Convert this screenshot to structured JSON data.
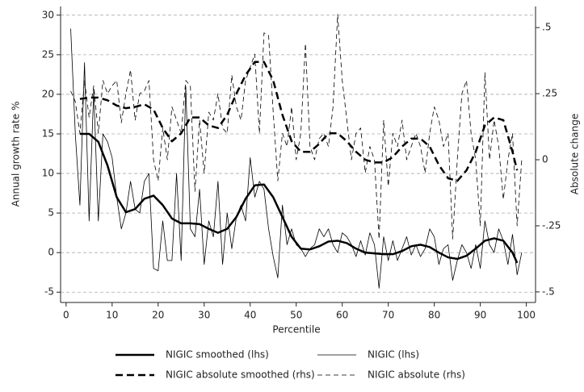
{
  "chart_data": {
    "type": "line",
    "xlabel": "Percentile",
    "ylabel": "Annual growth rate %",
    "y2label": "Absolute change",
    "xlim": [
      -1.2,
      102
    ],
    "xticks": [
      0,
      10,
      20,
      30,
      40,
      50,
      60,
      70,
      80,
      90,
      100
    ],
    "ylim": [
      -6.3,
      31.1
    ],
    "yticks": [
      -5,
      0,
      5,
      10,
      15,
      20,
      25,
      30
    ],
    "y2lim": [
      -0.54,
      0.58
    ],
    "y2ticks": [
      {
        "value": -0.5,
        "label": "-.5"
      },
      {
        "value": -0.25,
        "label": "-.25"
      },
      {
        "value": 0,
        "label": "0"
      },
      {
        "value": 0.25,
        "label": ".25"
      },
      {
        "value": 0.5,
        "label": ".5"
      }
    ],
    "grid": true,
    "series": [
      {
        "name": "NIGIC smoothed (lhs)",
        "color": "#000000",
        "linestyle": "solid",
        "linewidth": 2.5,
        "axis": "y",
        "x": [
          3,
          5,
          7,
          9,
          11,
          13,
          15,
          17,
          19,
          21,
          23,
          25,
          27,
          29,
          31,
          33,
          35,
          37,
          39,
          41,
          43,
          45,
          47,
          49,
          51,
          53,
          55,
          57,
          59,
          61,
          63,
          65,
          67,
          69,
          71,
          73,
          75,
          77,
          79,
          81,
          83,
          85,
          87,
          89,
          91,
          93,
          95,
          97,
          98
        ],
        "values": [
          15,
          15,
          14,
          11,
          7,
          5.1,
          5.5,
          6.8,
          7.2,
          6,
          4.3,
          3.7,
          3.7,
          3.6,
          3,
          2.5,
          3,
          4.5,
          6.8,
          8.5,
          8.6,
          7,
          4.5,
          2,
          0.5,
          0.4,
          0.8,
          1.4,
          1.5,
          1.2,
          0.5,
          0,
          -0.1,
          -0.2,
          -0.2,
          0.2,
          0.8,
          1,
          0.7,
          0,
          -0.6,
          -0.8,
          -0.4,
          0.5,
          1.5,
          1.8,
          1.5,
          0,
          -1.3
        ]
      },
      {
        "name": "NIGIC (lhs)",
        "color": "#000000",
        "linestyle": "solid",
        "linewidth": 0.8,
        "axis": "y",
        "x": [
          1,
          2,
          3,
          4,
          5,
          6,
          7,
          8,
          9,
          10,
          11,
          12,
          13,
          14,
          15,
          16,
          17,
          18,
          19,
          20,
          21,
          22,
          23,
          24,
          25,
          26,
          27,
          28,
          29,
          30,
          31,
          32,
          33,
          34,
          35,
          36,
          37,
          38,
          39,
          40,
          41,
          42,
          43,
          44,
          45,
          46,
          47,
          48,
          49,
          50,
          51,
          52,
          53,
          54,
          55,
          56,
          57,
          58,
          59,
          60,
          61,
          62,
          63,
          64,
          65,
          66,
          67,
          68,
          69,
          70,
          71,
          72,
          73,
          74,
          75,
          76,
          77,
          78,
          79,
          80,
          81,
          82,
          83,
          84,
          85,
          86,
          87,
          88,
          89,
          90,
          91,
          92,
          93,
          94,
          95,
          96,
          97,
          98,
          99
        ],
        "values": [
          28.3,
          15,
          6,
          24,
          4,
          20.5,
          4,
          15,
          14,
          12,
          7,
          3,
          5,
          9,
          5.5,
          5,
          9,
          10,
          -2,
          -2.3,
          4,
          -1,
          -1,
          10,
          -1,
          21,
          3,
          2,
          8,
          -1.5,
          4,
          2,
          9,
          -1.5,
          5,
          0.5,
          4.5,
          6,
          4,
          12,
          7,
          9,
          8,
          3,
          -0.5,
          -3.2,
          6,
          1,
          3,
          1,
          0.5,
          -0.5,
          0.5,
          1,
          3,
          2,
          3,
          1,
          0,
          2.5,
          2,
          1,
          -0.5,
          1.5,
          -0.3,
          2.5,
          1,
          -4.5,
          2,
          -1,
          1.5,
          -1,
          0.5,
          2,
          -0.3,
          1,
          -0.5,
          0.5,
          3,
          2,
          -1.5,
          0.5,
          1,
          -3.5,
          -1,
          1,
          0,
          -2,
          1,
          -2,
          4,
          1,
          0,
          3,
          1.5,
          -1.5,
          2.3,
          -2.8,
          0
        ]
      },
      {
        "name": "NIGIC absolute smoothed (rhs)",
        "color": "#000000",
        "linestyle": "dashed",
        "linewidth": 2.5,
        "axis": "y2",
        "x": [
          3,
          5,
          7,
          9,
          11,
          13,
          15,
          17,
          19,
          21,
          23,
          25,
          27,
          29,
          31,
          33,
          35,
          37,
          39,
          41,
          43,
          45,
          47,
          49,
          51,
          53,
          55,
          57,
          59,
          61,
          63,
          65,
          67,
          69,
          71,
          73,
          75,
          77,
          79,
          81,
          83,
          85,
          87,
          89,
          91,
          93,
          95,
          97,
          98
        ],
        "values": [
          0.23,
          0.235,
          0.235,
          0.225,
          0.205,
          0.195,
          0.2,
          0.21,
          0.19,
          0.12,
          0.07,
          0.1,
          0.16,
          0.16,
          0.13,
          0.12,
          0.17,
          0.25,
          0.32,
          0.37,
          0.37,
          0.3,
          0.17,
          0.07,
          0.03,
          0.03,
          0.06,
          0.1,
          0.1,
          0.07,
          0.03,
          0,
          -0.01,
          -0.01,
          0.01,
          0.05,
          0.08,
          0.08,
          0.05,
          -0.02,
          -0.07,
          -0.08,
          -0.04,
          0.03,
          0.13,
          0.16,
          0.15,
          0.03,
          -0.04
        ]
      },
      {
        "name": "NIGIC absolute (rhs)",
        "color": "#000000",
        "linestyle": "dashed",
        "linewidth": 0.8,
        "axis": "y2",
        "x": [
          1,
          2,
          3,
          4,
          5,
          6,
          7,
          8,
          9,
          10,
          11,
          12,
          13,
          14,
          15,
          16,
          17,
          18,
          19,
          20,
          21,
          22,
          23,
          24,
          25,
          26,
          27,
          28,
          29,
          30,
          31,
          32,
          33,
          34,
          35,
          36,
          37,
          38,
          39,
          40,
          41,
          42,
          43,
          44,
          45,
          46,
          47,
          48,
          49,
          50,
          51,
          52,
          53,
          54,
          55,
          56,
          57,
          58,
          59,
          60,
          61,
          62,
          63,
          64,
          65,
          66,
          67,
          68,
          69,
          70,
          71,
          72,
          73,
          74,
          75,
          76,
          77,
          78,
          79,
          80,
          81,
          82,
          83,
          84,
          85,
          86,
          87,
          88,
          89,
          90,
          91,
          92,
          93,
          94,
          95,
          96,
          97,
          98,
          99
        ],
        "values": [
          0.26,
          0.22,
          0.1,
          0.3,
          0.16,
          0.28,
          0.1,
          0.3,
          0.25,
          0.28,
          0.3,
          0.14,
          0.25,
          0.34,
          0.15,
          0.25,
          0.26,
          0.3,
          0,
          -0.08,
          0.12,
          0,
          0.2,
          0.15,
          0.1,
          0.3,
          0.28,
          -0.12,
          0.15,
          -0.05,
          0.18,
          0.15,
          0.25,
          0.12,
          0.1,
          0.32,
          0.2,
          0.15,
          0.3,
          0.35,
          0.4,
          0.1,
          0.48,
          0.47,
          0.18,
          -0.08,
          0.1,
          0.05,
          0.2,
          0,
          0.1,
          0.44,
          0.05,
          0,
          0.08,
          0.1,
          0.05,
          0.2,
          0.55,
          0.3,
          0.15,
          0,
          0.1,
          0.12,
          -0.05,
          0.05,
          0,
          -0.3,
          0.15,
          -0.1,
          0.1,
          0.05,
          0.15,
          0,
          0.05,
          0.1,
          0.05,
          -0.05,
          0.1,
          0.2,
          0.15,
          0.05,
          0.1,
          -0.3,
          0,
          0.25,
          0.3,
          0.1,
          0,
          -0.25,
          0.33,
          0,
          0.15,
          0.05,
          -0.15,
          0,
          0.1,
          -0.25,
          0
        ]
      }
    ]
  }
}
